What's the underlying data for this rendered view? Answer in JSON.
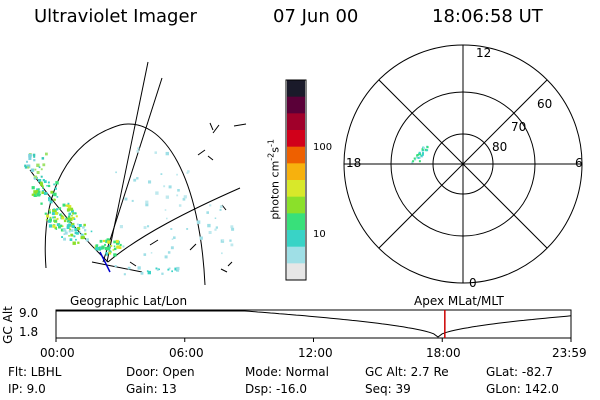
{
  "header": {
    "instrument": "Ultraviolet Imager",
    "date": "07 Jun 00",
    "time": "18:06:58 UT"
  },
  "colorbar": {
    "unit_label": "photon cm",
    "unit_exp1": "-2",
    "unit_s": "s",
    "unit_exp2": "-1",
    "ticks": [
      "100",
      "10"
    ],
    "colors": [
      "#e6e6e6",
      "#9fdfe6",
      "#39d3c6",
      "#38e07a",
      "#8be02a",
      "#d8e82a",
      "#f7b10d",
      "#ee6000",
      "#d1001a",
      "#a0002a",
      "#5a0038",
      "#1a1a2a"
    ]
  },
  "polar": {
    "mlt_labels": [
      "12",
      "18",
      "6",
      "0"
    ],
    "lat_labels": [
      "60",
      "70",
      "80"
    ]
  },
  "map_labels": {
    "left": "Geographic Lat/Lon",
    "right": "Apex MLat/MLT"
  },
  "altitude_plot": {
    "axis_title": "GC Alt",
    "y_ticks": [
      "9.0",
      "1.8"
    ],
    "x_ticks": [
      "00:00",
      "06:00",
      "12:00",
      "18:00",
      "23:59"
    ],
    "current_time_hours": 18.12
  },
  "footer": {
    "rows": [
      [
        "Flt: LBHL",
        "Door: Open",
        "Mode: Normal",
        "GC Alt: 2.7 Re",
        "GLat: -82.7"
      ],
      [
        "IP: 9.0",
        "Gain: 13",
        "Dsp: -16.0",
        "Seq: 39",
        "GLon: 142.0"
      ]
    ]
  }
}
